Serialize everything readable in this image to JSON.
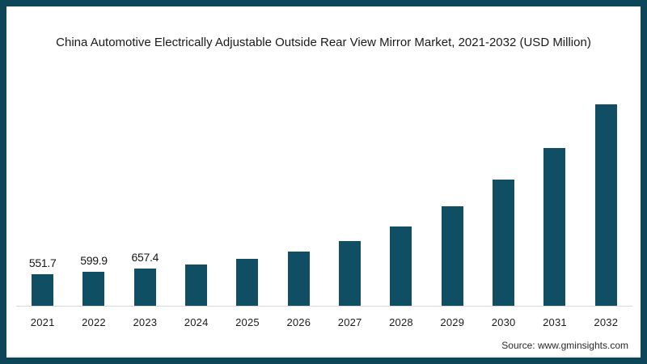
{
  "window": {
    "background": "#ffffff",
    "frame_color": "#0d4658"
  },
  "header": {
    "title": "China Automotive Electrically Adjustable Outside Rear View Mirror Market, 2021-2032 (USD Million)"
  },
  "footer": {
    "source": "Source: www.gminsights.com"
  },
  "chart_data": {
    "type": "bar",
    "title": "China Automotive Electrically Adjustable Outside Rear View Mirror Market, 2021-2032 (USD Million)",
    "unit": "USD Million",
    "categories": [
      "2021",
      "2022",
      "2023",
      "2024",
      "2025",
      "2026",
      "2027",
      "2028",
      "2029",
      "2030",
      "2031",
      "2032"
    ],
    "values": [
      551.7,
      599.9,
      657.4,
      730,
      830,
      960,
      1145,
      1400,
      1760,
      2230,
      2790,
      3560
    ],
    "data_labels": [
      "551.7",
      "599.9",
      "657.4",
      "",
      "",
      "",
      "",
      "",
      "",
      "",
      "",
      ""
    ],
    "bar_color": "#104e64",
    "axis_line_color": "#d8d8d8",
    "ylim": [
      0,
      3700
    ],
    "grid": false,
    "legend": false,
    "xlabel": "",
    "ylabel": "",
    "source": "Source: www.gminsights.com"
  }
}
